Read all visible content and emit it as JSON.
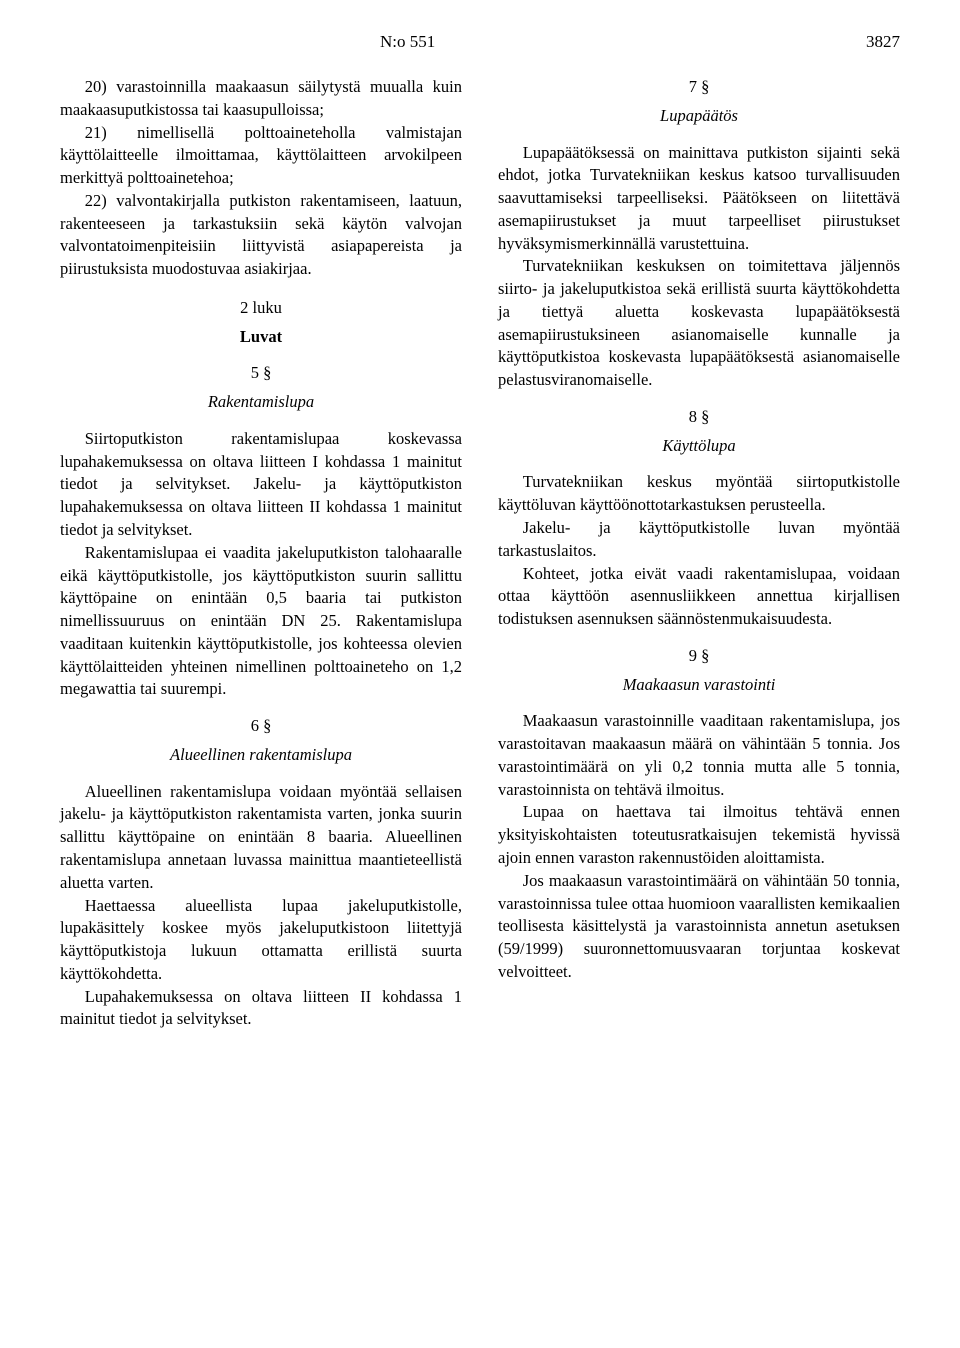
{
  "header": {
    "doc_number": "N:o 551",
    "page_number": "3827"
  },
  "left": {
    "p1_item20": "20) varastoinnilla maakaasun säilytystä muualla kuin maakaasuputkistossa tai kaasupulloissa;",
    "p1_item21": "21) nimellisellä polttoaineteholla valmistajan käyttölaitteelle ilmoittamaa, käyttölaitteen arvokilpeen merkittyä polttoainetehoa;",
    "p1_item22": "22) valvontakirjalla putkiston rakentamiseen, laatuun, rakenteeseen ja tarkastuksiin sekä käytön valvojan valvontatoimenpiteisiin liittyvistä asiapapereista ja piirustuksista muodostuvaa asiakirjaa.",
    "chapter2": "2 luku",
    "chapter2_title": "Luvat",
    "s5": "5 §",
    "s5_title": "Rakentamislupa",
    "s5_p1": "Siirtoputkiston rakentamislupaa koskevassa lupahakemuksessa on oltava liitteen I kohdassa 1 mainitut tiedot ja selvitykset. Jakelu- ja käyttöputkiston lupahakemuksessa on oltava liitteen II kohdassa 1 mainitut tiedot ja selvitykset.",
    "s5_p2": "Rakentamislupaa ei vaadita jakeluputkiston talohaaralle eikä käyttöputkistolle, jos käyttöputkiston suurin sallittu käyttöpaine on enintään 0,5 baaria tai putkiston nimellissuuruus on enintään DN 25. Rakentamislupa vaaditaan kuitenkin käyttöputkistolle, jos kohteessa olevien käyttölaitteiden yhteinen nimellinen polttoaineteho on 1,2 megawattia tai suurempi.",
    "s6": "6 §",
    "s6_title": "Alueellinen rakentamislupa",
    "s6_p1": "Alueellinen rakentamislupa voidaan myöntää sellaisen jakelu- ja käyttöputkiston rakentamista varten, jonka suurin sallittu käyttöpaine on enintään 8 baaria. Alueellinen rakentamislupa annetaan luvassa mainittua maantieteellistä aluetta varten.",
    "s6_p2": "Haettaessa alueellista lupaa jakeluputkistolle, lupakäsittely koskee myös jakeluputkistoon liitettyjä käyttöputkistoja lukuun ottamatta erillistä suurta käyttökohdetta.",
    "s6_p3": "Lupahakemuksessa on oltava liitteen II kohdassa 1 mainitut tiedot ja selvitykset."
  },
  "right": {
    "s7": "7 §",
    "s7_title": "Lupapäätös",
    "s7_p1": "Lupapäätöksessä on mainittava putkiston sijainti sekä ehdot, jotka Turvatekniikan keskus katsoo turvallisuuden saavuttamiseksi tarpeelliseksi. Päätökseen on liitettävä asemapiirustukset ja muut tarpeelliset piirustukset hyväksymismerkinnällä varustettuina.",
    "s7_p2": "Turvatekniikan keskuksen on toimitettava jäljennös siirto- ja jakeluputkistoa sekä erillistä suurta käyttökohdetta ja tiettyä aluetta koskevasta lupapäätöksestä asemapiirustuksineen asianomaiselle kunnalle ja käyttöputkistoa koskevasta lupapäätöksestä asianomaiselle pelastusviranomaiselle.",
    "s8": "8 §",
    "s8_title": "Käyttölupa",
    "s8_p1": "Turvatekniikan keskus myöntää siirtoputkistolle käyttöluvan käyttöönottotarkastuksen perusteella.",
    "s8_p2": "Jakelu- ja käyttöputkistolle luvan myöntää tarkastuslaitos.",
    "s8_p3": "Kohteet, jotka eivät vaadi rakentamislupaa, voidaan ottaa käyttöön asennusliikkeen annettua kirjallisen todistuksen asennuksen säännöstenmukaisuudesta.",
    "s9": "9 §",
    "s9_title": "Maakaasun varastointi",
    "s9_p1": "Maakaasun varastoinnille vaaditaan rakentamislupa, jos varastoitavan maakaasun määrä on vähintään 5 tonnia. Jos varastointimäärä on yli 0,2 tonnia mutta alle 5 tonnia, varastoinnista on tehtävä ilmoitus.",
    "s9_p2": "Lupaa on haettava tai ilmoitus tehtävä ennen yksityiskohtaisten toteutusratkaisujen tekemistä hyvissä ajoin ennen varaston rakennustöiden aloittamista.",
    "s9_p3": "Jos maakaasun varastointimäärä on vähintään 50 tonnia, varastoinnissa tulee ottaa huomioon vaarallisten kemikaalien teollisesta käsittelystä ja varastoinnista annetun asetuksen (59/1999) suuronnettomuusvaaran torjuntaa koskevat velvoitteet."
  }
}
